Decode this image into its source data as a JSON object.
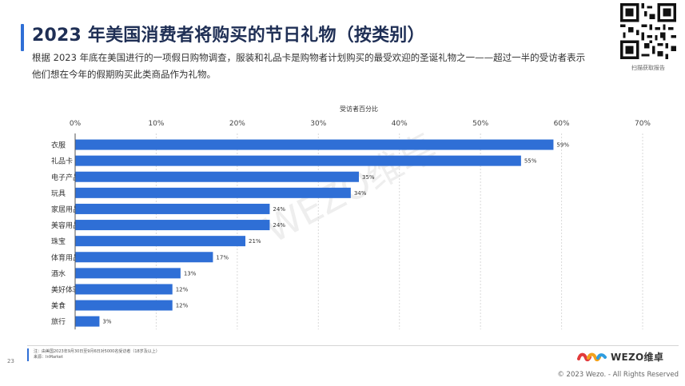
{
  "page": {
    "title": "2023 年美国消费者将购买的节日礼物（按类别）",
    "subtitle": "根据 2023 年底在美国进行的一项假日购物调查，服装和礼品卡是购物者计划购买的最受欢迎的圣诞礼物之一——超过一半的受访者表示他们想在今年的假期购买此类商品作为礼物。",
    "qr_caption": "扫描获取报告",
    "watermark": "WEZO维卓",
    "page_number": "23",
    "note_line1": "注：由美国2023年9月30日至9月6日对5000名受访者（18岁及以上）",
    "note_line2": "来源：InMarket",
    "brand_name": "WEZO维卓",
    "copyright": "© 2023 Wezo. - All Rights Reserved",
    "accent_color": "#2f6fd6"
  },
  "chart_data": {
    "type": "bar",
    "orientation": "horizontal",
    "xlabel": "受访者百分比",
    "xlim": [
      0,
      70
    ],
    "xticks": [
      "0%",
      "10%",
      "20%",
      "30%",
      "40%",
      "50%",
      "60%",
      "70%"
    ],
    "grid": true,
    "categories": [
      "衣服",
      "礼品卡",
      "电子产品",
      "玩具",
      "家居用品",
      "美容用品",
      "珠宝",
      "体育用品",
      "酒水",
      "美好体验",
      "美食",
      "旅行"
    ],
    "values": [
      59,
      55,
      35,
      34,
      24,
      24,
      21,
      17,
      13,
      12,
      12,
      3
    ],
    "data_labels": [
      "59%",
      "55%",
      "35%",
      "34%",
      "24%",
      "24%",
      "21%",
      "17%",
      "13%",
      "12%",
      "12%",
      "3%"
    ],
    "bar_color": "#2f6fd6"
  }
}
